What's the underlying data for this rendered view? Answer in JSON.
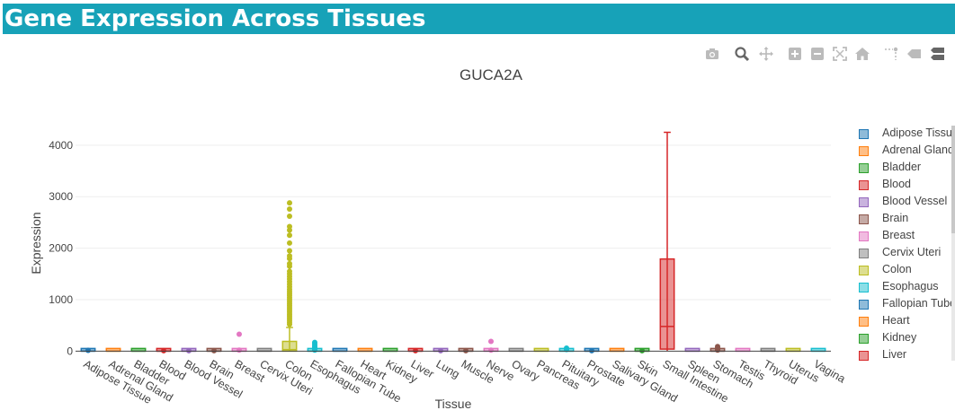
{
  "header": {
    "title": "Gene Expression Across Tissues"
  },
  "modebar": {
    "buttons": [
      {
        "name": "camera-icon",
        "title": "Download plot as a png"
      },
      {
        "name": "zoom-icon",
        "title": "Zoom"
      },
      {
        "name": "pan-icon",
        "title": "Pan"
      },
      {
        "name": "zoom-in-icon",
        "title": "Zoom in"
      },
      {
        "name": "zoom-out-icon",
        "title": "Zoom out"
      },
      {
        "name": "autoscale-icon",
        "title": "Autoscale"
      },
      {
        "name": "home-icon",
        "title": "Reset axes"
      },
      {
        "name": "spike-lines-icon",
        "title": "Toggle Spike Lines"
      },
      {
        "name": "hover-closest-icon",
        "title": "Show closest data on hover"
      },
      {
        "name": "hover-compare-icon",
        "title": "Compare data on hover"
      }
    ]
  },
  "chart_data": {
    "type": "box",
    "title": "GUCA2A",
    "xlabel": "Tissue",
    "ylabel": "Expression",
    "ylim": [
      -150,
      4450
    ],
    "yticks": [
      0,
      1000,
      2000,
      3000,
      4000
    ],
    "ytick_labels": [
      "0",
      "1000",
      "2000",
      "3000",
      "4000"
    ],
    "grid": true,
    "legend_position": "right",
    "categories": [
      "Adipose Tissue",
      "Adrenal Gland",
      "Bladder",
      "Blood",
      "Blood Vessel",
      "Brain",
      "Breast",
      "Cervix Uteri",
      "Colon",
      "Esophagus",
      "Fallopian Tube",
      "Heart",
      "Kidney",
      "Liver",
      "Lung",
      "Muscle",
      "Nerve",
      "Ovary",
      "Pancreas",
      "Pituitary",
      "Prostate",
      "Salivary Gland",
      "Skin",
      "Small Intestine",
      "Spleen",
      "Stomach",
      "Testis",
      "Thyroid",
      "Uterus",
      "Vagina"
    ],
    "legend_entries": [
      "Adipose Tissue",
      "Adrenal Gland",
      "Bladder",
      "Blood",
      "Blood Vessel",
      "Brain",
      "Breast",
      "Cervix Uteri",
      "Colon",
      "Esophagus",
      "Fallopian Tube",
      "Heart",
      "Kidney",
      "Liver"
    ],
    "colors": [
      "#1f77b4",
      "#ff7f0e",
      "#2ca02c",
      "#d62728",
      "#9467bd",
      "#8c564b",
      "#e377c2",
      "#7f7f7f",
      "#bcbd22",
      "#17becf",
      "#1f77b4",
      "#ff7f0e",
      "#2ca02c",
      "#d62728",
      "#9467bd",
      "#8c564b",
      "#e377c2",
      "#7f7f7f",
      "#bcbd22",
      "#17becf",
      "#1f77b4",
      "#ff7f0e",
      "#2ca02c",
      "#d62728",
      "#9467bd",
      "#8c564b",
      "#e377c2",
      "#7f7f7f",
      "#bcbd22",
      "#17becf"
    ],
    "series": [
      {
        "name": "Adipose Tissue",
        "q1": 0,
        "median": 0,
        "q3": 0,
        "lower": 0,
        "upper": 5,
        "outliers": [
          15
        ]
      },
      {
        "name": "Adrenal Gland",
        "q1": 0,
        "median": 0,
        "q3": 0,
        "lower": 0,
        "upper": 5,
        "outliers": []
      },
      {
        "name": "Bladder",
        "q1": 0,
        "median": 0,
        "q3": 0,
        "lower": 0,
        "upper": 5,
        "outliers": []
      },
      {
        "name": "Blood",
        "q1": 0,
        "median": 0,
        "q3": 0,
        "lower": 0,
        "upper": 5,
        "outliers": [
          10
        ]
      },
      {
        "name": "Blood Vessel",
        "q1": 0,
        "median": 0,
        "q3": 0,
        "lower": 0,
        "upper": 5,
        "outliers": [
          10
        ]
      },
      {
        "name": "Brain",
        "q1": 0,
        "median": 0,
        "q3": 0,
        "lower": 0,
        "upper": 5,
        "outliers": [
          10
        ]
      },
      {
        "name": "Breast",
        "q1": 0,
        "median": 0,
        "q3": 0,
        "lower": 0,
        "upper": 5,
        "outliers": [
          330,
          20
        ]
      },
      {
        "name": "Cervix Uteri",
        "q1": 0,
        "median": 0,
        "q3": 0,
        "lower": 0,
        "upper": 5,
        "outliers": []
      },
      {
        "name": "Colon",
        "q1": 0,
        "median": 30,
        "q3": 190,
        "lower": 0,
        "upper": 460,
        "outliers": [
          520,
          560,
          600,
          640,
          680,
          720,
          760,
          800,
          840,
          880,
          920,
          960,
          1000,
          1040,
          1080,
          1120,
          1160,
          1200,
          1250,
          1300,
          1350,
          1400,
          1450,
          1500,
          1550,
          1650,
          1700,
          1800,
          1850,
          1950,
          2100,
          2250,
          2350,
          2420,
          2620,
          2760,
          2880
        ]
      },
      {
        "name": "Esophagus",
        "q1": 0,
        "median": 0,
        "q3": 0,
        "lower": 0,
        "upper": 5,
        "outliers": [
          20,
          40,
          60,
          80,
          110,
          140,
          170
        ]
      },
      {
        "name": "Fallopian Tube",
        "q1": 0,
        "median": 0,
        "q3": 0,
        "lower": 0,
        "upper": 5,
        "outliers": []
      },
      {
        "name": "Heart",
        "q1": 0,
        "median": 0,
        "q3": 0,
        "lower": 0,
        "upper": 5,
        "outliers": []
      },
      {
        "name": "Kidney",
        "q1": 0,
        "median": 0,
        "q3": 0,
        "lower": 0,
        "upper": 5,
        "outliers": []
      },
      {
        "name": "Liver",
        "q1": 0,
        "median": 0,
        "q3": 0,
        "lower": 0,
        "upper": 5,
        "outliers": [
          10
        ]
      },
      {
        "name": "Lung",
        "q1": 0,
        "median": 0,
        "q3": 0,
        "lower": 0,
        "upper": 5,
        "outliers": [
          10
        ]
      },
      {
        "name": "Muscle",
        "q1": 0,
        "median": 0,
        "q3": 0,
        "lower": 0,
        "upper": 5,
        "outliers": [
          10
        ]
      },
      {
        "name": "Nerve",
        "q1": 0,
        "median": 0,
        "q3": 0,
        "lower": 0,
        "upper": 5,
        "outliers": [
          190,
          20
        ]
      },
      {
        "name": "Ovary",
        "q1": 0,
        "median": 0,
        "q3": 0,
        "lower": 0,
        "upper": 5,
        "outliers": []
      },
      {
        "name": "Pancreas",
        "q1": 0,
        "median": 0,
        "q3": 0,
        "lower": 0,
        "upper": 5,
        "outliers": []
      },
      {
        "name": "Pituitary",
        "q1": 0,
        "median": 0,
        "q3": 0,
        "lower": 0,
        "upper": 5,
        "outliers": [
          30,
          60
        ]
      },
      {
        "name": "Prostate",
        "q1": 0,
        "median": 0,
        "q3": 0,
        "lower": 0,
        "upper": 5,
        "outliers": [
          10
        ]
      },
      {
        "name": "Salivary Gland",
        "q1": 0,
        "median": 0,
        "q3": 0,
        "lower": 0,
        "upper": 5,
        "outliers": []
      },
      {
        "name": "Skin",
        "q1": 0,
        "median": 0,
        "q3": 0,
        "lower": 0,
        "upper": 5,
        "outliers": [
          10
        ]
      },
      {
        "name": "Small Intestine",
        "q1": 40,
        "median": 480,
        "q3": 1790,
        "lower": 0,
        "upper": 4250,
        "outliers": []
      },
      {
        "name": "Spleen",
        "q1": 0,
        "median": 0,
        "q3": 0,
        "lower": 0,
        "upper": 5,
        "outliers": []
      },
      {
        "name": "Stomach",
        "q1": 0,
        "median": 0,
        "q3": 0,
        "lower": 0,
        "upper": 5,
        "outliers": [
          20,
          40,
          60,
          90
        ]
      },
      {
        "name": "Testis",
        "q1": 0,
        "median": 0,
        "q3": 0,
        "lower": 0,
        "upper": 5,
        "outliers": []
      },
      {
        "name": "Thyroid",
        "q1": 0,
        "median": 0,
        "q3": 0,
        "lower": 0,
        "upper": 5,
        "outliers": []
      },
      {
        "name": "Uterus",
        "q1": 0,
        "median": 0,
        "q3": 0,
        "lower": 0,
        "upper": 5,
        "outliers": []
      },
      {
        "name": "Vagina",
        "q1": 0,
        "median": 0,
        "q3": 0,
        "lower": 0,
        "upper": 5,
        "outliers": []
      }
    ]
  }
}
